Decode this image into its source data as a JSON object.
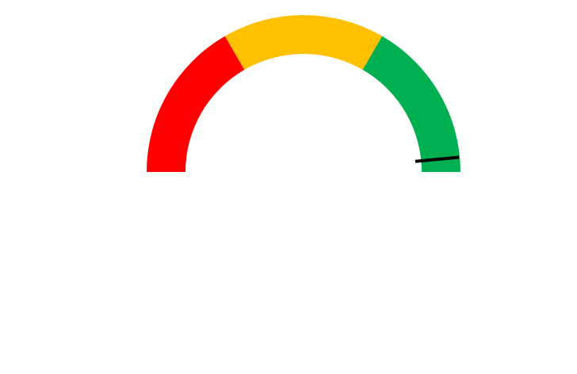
{
  "chart_data": {
    "type": "gauge",
    "scale": {
      "min": 0,
      "max": 1
    },
    "bands": [
      {
        "from": 0.0,
        "to": 0.333,
        "color": "#ff0000"
      },
      {
        "from": 0.333,
        "to": 0.667,
        "color": "#ffc000"
      },
      {
        "from": 0.667,
        "to": 1.0,
        "color": "#00b050"
      }
    ],
    "value": 0.97,
    "needle_color": "#000000"
  }
}
